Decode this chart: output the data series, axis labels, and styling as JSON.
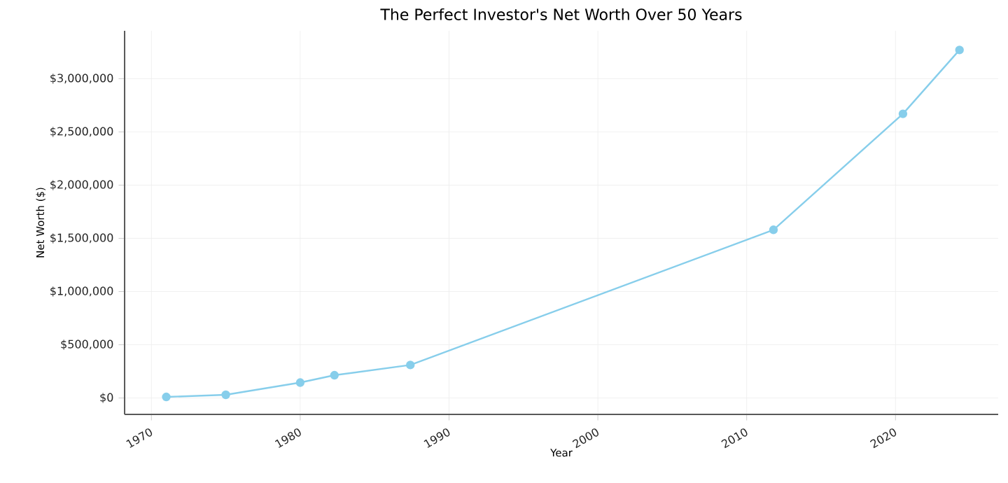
{
  "chart_data": {
    "type": "line",
    "title": "The Perfect Investor's Net Worth Over 50 Years",
    "xlabel": "Year",
    "ylabel": "Net Worth ($)",
    "x": [
      1971,
      1975,
      1980,
      1982.3,
      1987.4,
      2011.8,
      2020.5,
      2024.3
    ],
    "series": [
      {
        "color": "#87ceeb",
        "values": [
          10000,
          30000,
          145000,
          214000,
          310000,
          1580000,
          2670000,
          3270000
        ]
      }
    ],
    "xlim": [
      1968.2,
      2026.9
    ],
    "ylim": [
      -154000,
      3450000
    ],
    "xticks": [
      1970,
      1980,
      1990,
      2000,
      2010,
      2020
    ],
    "yticks": [
      {
        "value": 0,
        "label": "$0"
      },
      {
        "value": 500000,
        "label": "$500,000"
      },
      {
        "value": 1000000,
        "label": "$1,000,000"
      },
      {
        "value": 1500000,
        "label": "$1,500,000"
      },
      {
        "value": 2000000,
        "label": "$2,000,000"
      },
      {
        "value": 2500000,
        "label": "$2,500,000"
      },
      {
        "value": 3000000,
        "label": "$3,000,000"
      }
    ],
    "grid": true,
    "marker": "circle",
    "line_style": "solid"
  }
}
